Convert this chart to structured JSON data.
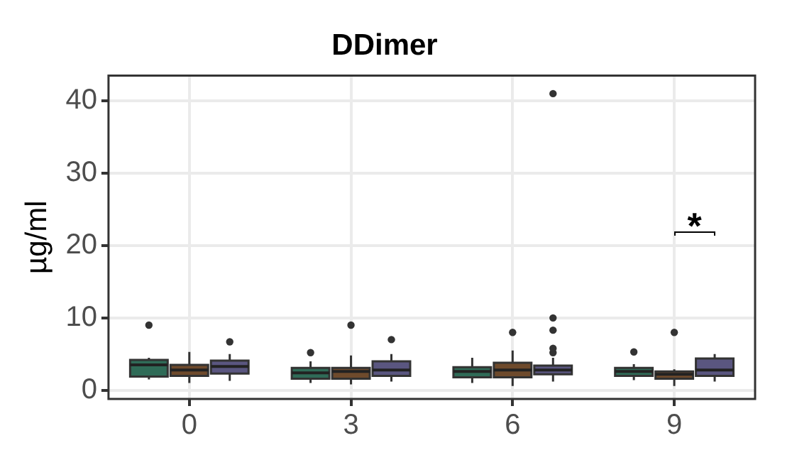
{
  "chart_data": {
    "type": "box",
    "title": "DDimer",
    "ylabel": "µg/ml",
    "categories": [
      "0",
      "3",
      "6",
      "9"
    ],
    "ylim": [
      -1.2,
      43.5
    ],
    "yticks": [
      0,
      10,
      20,
      30,
      40
    ],
    "grid": true,
    "legend": false,
    "series": [
      {
        "color": "#2f6b57",
        "boxes": [
          {
            "low": 1.5,
            "q1": 1.9,
            "median": 3.5,
            "q3": 4.2,
            "high": 4.5,
            "outliers": [
              9
            ]
          },
          {
            "low": 1,
            "q1": 1.6,
            "median": 2.4,
            "q3": 3.1,
            "high": 4,
            "outliers": [
              5.2
            ]
          },
          {
            "low": 1,
            "q1": 1.8,
            "median": 2.6,
            "q3": 3.2,
            "high": 4.5
          },
          {
            "low": 1.4,
            "q1": 2,
            "median": 2.6,
            "q3": 3.1,
            "high": 3.6,
            "outliers": [
              5.3
            ]
          }
        ]
      },
      {
        "color": "#6e4a2c",
        "boxes": [
          {
            "low": 1,
            "q1": 2,
            "median": 2.8,
            "q3": 3.5,
            "high": 5.3
          },
          {
            "low": 0.8,
            "q1": 1.6,
            "median": 2.6,
            "q3": 3.1,
            "high": 4.8,
            "outliers": [
              9
            ]
          },
          {
            "low": 0.6,
            "q1": 1.8,
            "median": 2.8,
            "q3": 3.8,
            "high": 5.5,
            "outliers": [
              8
            ]
          },
          {
            "low": 0.6,
            "q1": 1.6,
            "median": 2.2,
            "q3": 2.6,
            "high": 2.9,
            "outliers": [
              8
            ]
          }
        ]
      },
      {
        "color": "#5a5680",
        "boxes": [
          {
            "low": 1.3,
            "q1": 2.3,
            "median": 3.3,
            "q3": 4.1,
            "high": 5,
            "outliers": [
              6.7
            ]
          },
          {
            "low": 1.2,
            "q1": 2,
            "median": 2.8,
            "q3": 4,
            "high": 5,
            "outliers": [
              7
            ]
          },
          {
            "low": 1.2,
            "q1": 2.2,
            "median": 2.8,
            "q3": 3.4,
            "high": 4.5,
            "outliers": [
              5.2,
              5.8,
              8.3,
              10,
              41
            ]
          },
          {
            "low": 1.2,
            "q1": 2,
            "median": 2.8,
            "q3": 4.4,
            "high": 5
          }
        ]
      }
    ],
    "annotations": [
      "*"
    ]
  }
}
